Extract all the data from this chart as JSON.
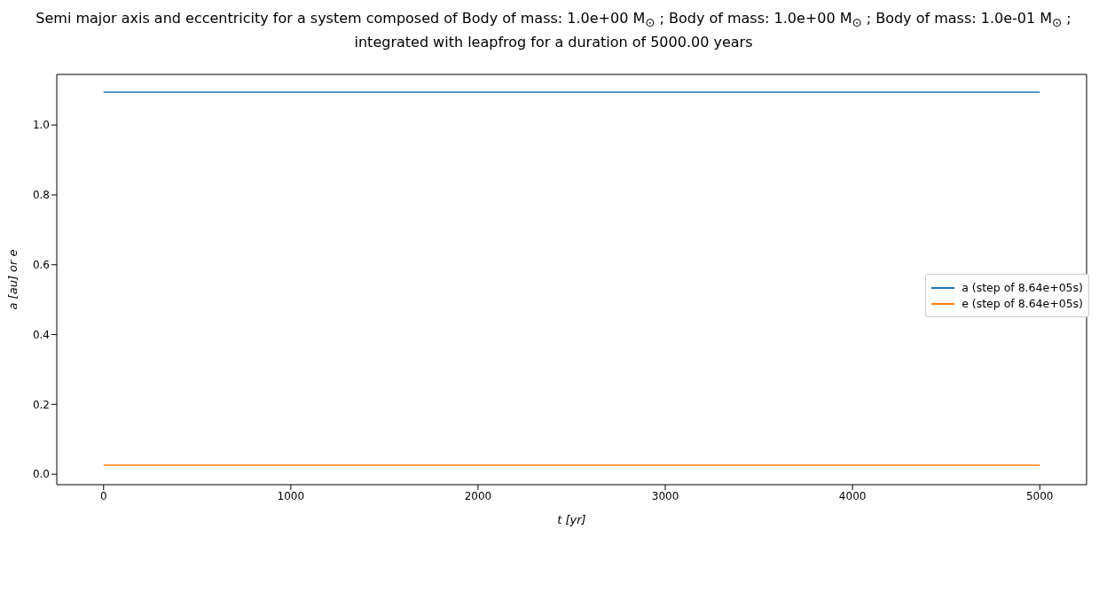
{
  "chart_data": {
    "type": "line",
    "title": "Semi major axis and eccentricity for a system composed of Body of mass: 1.0e+00 M$_{⊙}$ ; Body of mass: 1.0e+00 M$_{⊙}$ ; Body of mass: 1.0e-01 M$_{⊙}$ ; integrated with leapfrog for a duration of 5000.00 years",
    "xlabel": "t [yr]",
    "ylabel": "a [au] or e",
    "x": [
      0,
      5000
    ],
    "series": [
      {
        "name": "a (step of 8.64e+05s)",
        "color": "#1f77b4",
        "values": [
          1.094,
          1.094
        ]
      },
      {
        "name": "e (step of 8.64e+05s)",
        "color": "#ff7f0e",
        "values": [
          0.026,
          0.026
        ]
      }
    ],
    "xlim": [
      -250,
      5250
    ],
    "xticks": [
      0,
      1000,
      2000,
      3000,
      4000,
      5000
    ],
    "ylim": [
      -0.03,
      1.145
    ],
    "yticks": [
      {
        "value": 0,
        "label": "0.0"
      },
      {
        "value": 0.2,
        "label": "0.2"
      },
      {
        "value": 0.4,
        "label": "0.4"
      },
      {
        "value": 0.6,
        "label": "0.6"
      },
      {
        "value": 0.8,
        "label": "0.8"
      },
      {
        "value": 1,
        "label": "1.0"
      }
    ],
    "legend": "right"
  }
}
